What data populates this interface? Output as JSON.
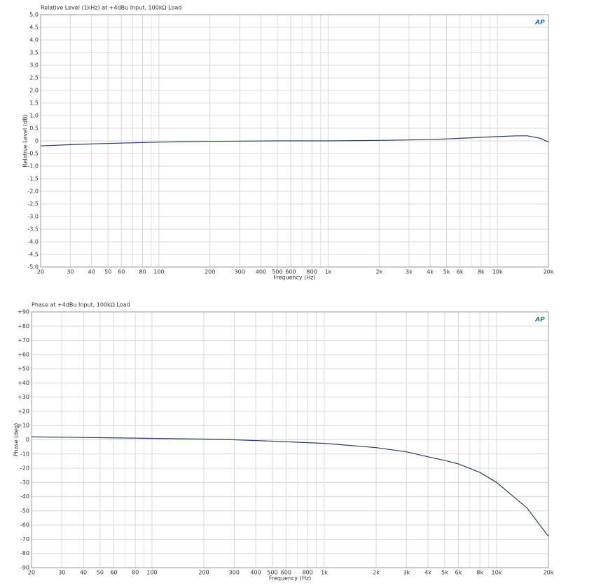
{
  "chart_data": [
    {
      "type": "line",
      "title": "Relative Level (1kHz) at +4dBu Input, 100kΩ Load",
      "logo": "AP",
      "x_label": "Frequency (Hz)",
      "y_label": "Relative Level (dB)",
      "x_scale": "log",
      "grid": true,
      "xlim": [
        20,
        20000
      ],
      "ylim": [
        -5,
        5
      ],
      "xticks": [
        20,
        30,
        40,
        50,
        60,
        80,
        100,
        200,
        300,
        400,
        500,
        600,
        800,
        {
          "value": 1000,
          "label": "1k"
        },
        {
          "value": 2000,
          "label": "2k"
        },
        {
          "value": 3000,
          "label": "3k"
        },
        {
          "value": 4000,
          "label": "4k"
        },
        {
          "value": 5000,
          "label": "5k"
        },
        {
          "value": 6000,
          "label": "6k"
        },
        {
          "value": 8000,
          "label": "8k"
        },
        {
          "value": 10000,
          "label": "10k"
        },
        {
          "value": 20000,
          "label": "20k"
        }
      ],
      "x_minor_grid": [
        70,
        90,
        700,
        900,
        7000,
        9000
      ],
      "yticks": [
        {
          "value": 5,
          "label": "5,0"
        },
        {
          "value": 4.5,
          "label": "4,5"
        },
        {
          "value": 4,
          "label": "4,0"
        },
        {
          "value": 3.5,
          "label": "3,5"
        },
        {
          "value": 3,
          "label": "3,0"
        },
        {
          "value": 2.5,
          "label": "2,5"
        },
        {
          "value": 2,
          "label": "2,0"
        },
        {
          "value": 1.5,
          "label": "1,5"
        },
        {
          "value": 1,
          "label": "1,0"
        },
        {
          "value": 0.5,
          "label": "0,5"
        },
        0,
        {
          "value": -0.5,
          "label": "-0,5"
        },
        {
          "value": -1,
          "label": "-1,0"
        },
        {
          "value": -1.5,
          "label": "-1,5"
        },
        {
          "value": -2,
          "label": "-2,0"
        },
        {
          "value": -2.5,
          "label": "-2,5"
        },
        {
          "value": -3,
          "label": "-3,0"
        },
        {
          "value": -3.5,
          "label": "-3,5"
        },
        {
          "value": -4,
          "label": "-4,0"
        },
        {
          "value": -4.5,
          "label": "-4,5"
        },
        {
          "value": -5,
          "label": "-5,0"
        }
      ],
      "x": [
        20,
        30,
        50,
        100,
        200,
        500,
        1000,
        2000,
        4000,
        6000,
        10000,
        13000,
        15000,
        18000,
        20000
      ],
      "series": [
        {
          "color": "#2b3f5c",
          "values": [
            -0.2,
            -0.15,
            -0.1,
            -0.05,
            -0.02,
            0,
            0,
            0.02,
            0.05,
            0.1,
            0.17,
            0.2,
            0.2,
            0.1,
            -0.05
          ]
        }
      ]
    },
    {
      "type": "line",
      "title": "Phase at +4dBu Input, 100kΩ Load",
      "logo": "AP",
      "x_label": "Frequency (Hz)",
      "y_label": "Phase (deg)",
      "x_scale": "log",
      "grid": true,
      "xlim": [
        20,
        20000
      ],
      "ylim": [
        -90,
        90
      ],
      "xticks": [
        20,
        30,
        40,
        50,
        60,
        80,
        100,
        200,
        300,
        400,
        500,
        600,
        800,
        {
          "value": 1000,
          "label": "1k"
        },
        {
          "value": 2000,
          "label": "2k"
        },
        {
          "value": 3000,
          "label": "3k"
        },
        {
          "value": 4000,
          "label": "4k"
        },
        {
          "value": 5000,
          "label": "5k"
        },
        {
          "value": 6000,
          "label": "6k"
        },
        {
          "value": 8000,
          "label": "8k"
        },
        {
          "value": 10000,
          "label": "10k"
        },
        {
          "value": 20000,
          "label": "20k"
        }
      ],
      "x_minor_grid": [
        70,
        90,
        700,
        900,
        7000,
        9000
      ],
      "yticks": [
        {
          "value": 90,
          "label": "+90"
        },
        {
          "value": 80,
          "label": "+80"
        },
        {
          "value": 70,
          "label": "+70"
        },
        {
          "value": 60,
          "label": "+60"
        },
        {
          "value": 50,
          "label": "+50"
        },
        {
          "value": 40,
          "label": "+40"
        },
        {
          "value": 30,
          "label": "+30"
        },
        {
          "value": 20,
          "label": "+20"
        },
        {
          "value": 10,
          "label": "+10"
        },
        0,
        -10,
        -20,
        -30,
        -40,
        -50,
        -60,
        -70,
        -80,
        -90
      ],
      "x": [
        20,
        50,
        100,
        200,
        300,
        500,
        1000,
        2000,
        3000,
        4000,
        5000,
        6000,
        8000,
        10000,
        15000,
        20000
      ],
      "series": [
        {
          "color": "#2b3f5c",
          "values": [
            2,
            1.5,
            1,
            0.5,
            0,
            -1,
            -2.5,
            -5.5,
            -8.5,
            -12,
            -14.5,
            -17,
            -23,
            -30,
            -48,
            -68
          ]
        }
      ]
    }
  ]
}
